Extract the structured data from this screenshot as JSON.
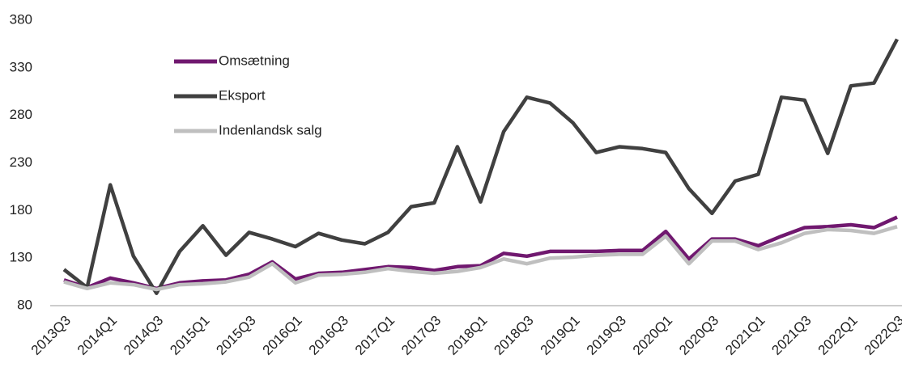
{
  "chart_data": {
    "type": "line",
    "categories": [
      "2013Q3",
      null,
      "2014Q1",
      null,
      "2014Q3",
      null,
      "2015Q1",
      null,
      "2015Q3",
      null,
      "2016Q1",
      null,
      "2016Q3",
      null,
      "2017Q1",
      null,
      "2017Q3",
      null,
      "2018Q1",
      null,
      "2018Q3",
      null,
      "2019Q1",
      null,
      "2019Q3",
      null,
      "2020Q1",
      null,
      "2020Q3",
      null,
      "2021Q1",
      null,
      "2021Q3",
      null,
      "2022Q1",
      null,
      "2022Q3"
    ],
    "series": [
      {
        "name": "Omsætning",
        "color": "#70186f",
        "values": [
          107,
          99,
          109,
          104,
          98,
          104,
          106,
          107,
          113,
          126,
          108,
          114,
          115,
          118,
          121,
          120,
          117,
          121,
          122,
          135,
          132,
          137,
          137,
          137,
          138,
          138,
          158,
          129,
          150,
          150,
          143,
          153,
          162,
          163,
          165,
          162,
          173
        ]
      },
      {
        "name": "Eksport",
        "color": "#404040",
        "values": [
          118,
          99,
          207,
          132,
          93,
          137,
          164,
          133,
          157,
          150,
          142,
          156,
          149,
          145,
          157,
          184,
          188,
          247,
          189,
          263,
          299,
          293,
          272,
          241,
          247,
          245,
          241,
          203,
          177,
          211,
          218,
          299,
          296,
          240,
          311,
          314,
          360
        ]
      },
      {
        "name": "Indenlandsk salg",
        "color": "#bfbfbf",
        "values": [
          105,
          98,
          104,
          102,
          97,
          102,
          103,
          105,
          110,
          124,
          104,
          112,
          113,
          115,
          119,
          116,
          114,
          116,
          120,
          129,
          124,
          130,
          131,
          133,
          134,
          134,
          153,
          124,
          148,
          148,
          139,
          146,
          156,
          160,
          159,
          156,
          163
        ]
      }
    ],
    "ylim": [
      80,
      380
    ],
    "yticks": [
      80,
      130,
      180,
      230,
      280,
      330,
      380
    ],
    "grid": false,
    "legend": "upper left"
  }
}
